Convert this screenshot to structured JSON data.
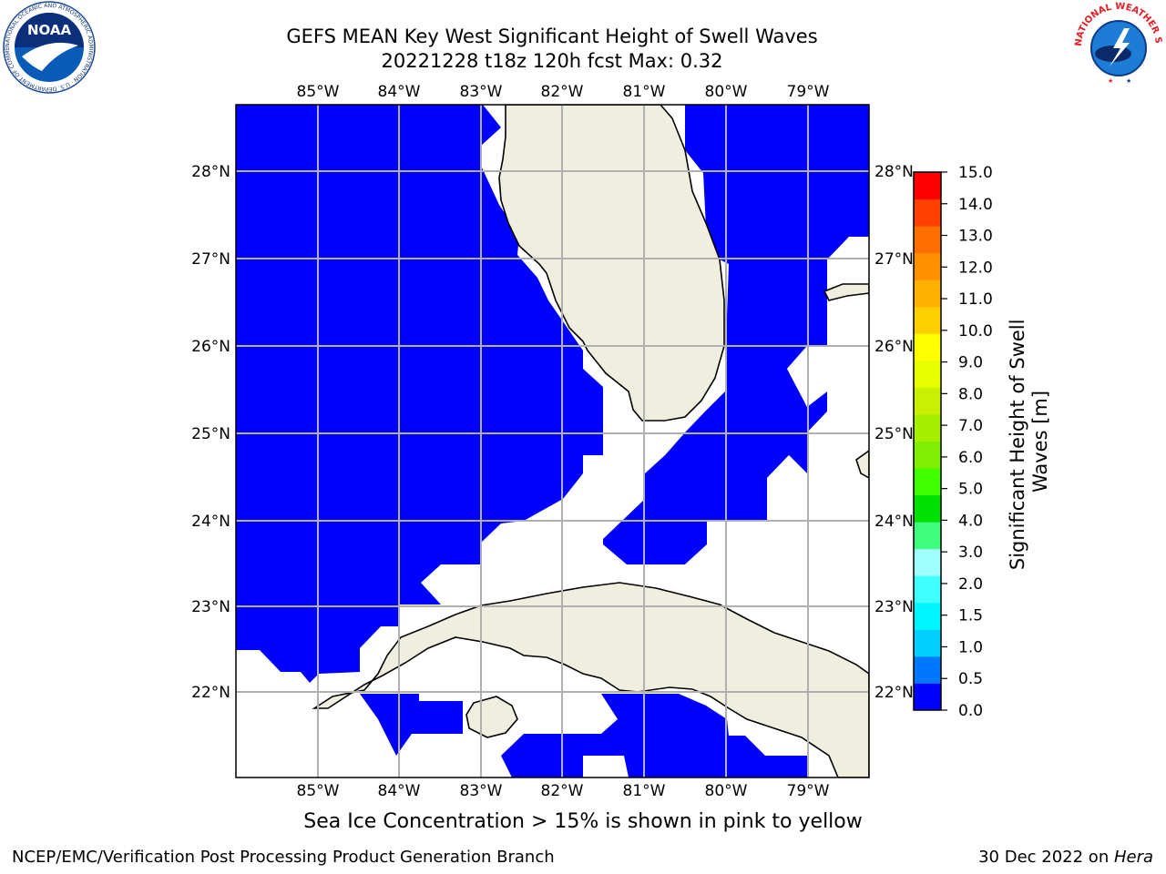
{
  "title": {
    "line1": "GEFS MEAN Key West Significant Height of Swell Waves",
    "line2": "20221228 t18z 120h fcst   Max: 0.32"
  },
  "map": {
    "lon_labels": [
      "85°W",
      "84°W",
      "83°W",
      "82°W",
      "81°W",
      "80°W",
      "79°W"
    ],
    "lat_labels": [
      "28°N",
      "27°N",
      "26°N",
      "25°N",
      "24°N",
      "23°N",
      "22°N"
    ],
    "colors": {
      "land": "#efeedf",
      "swell_fill": "#0000ff",
      "grid": "#b0b0b0",
      "coast": "#000000"
    }
  },
  "colorbar": {
    "title_line1": "Significant Height of Swell",
    "title_line2": "Waves [m]",
    "tick_labels": [
      "15.0",
      "14.0",
      "13.0",
      "12.0",
      "11.0",
      "10.0",
      "9.0",
      "8.0",
      "7.0",
      "6.0",
      "5.0",
      "4.0",
      "3.0",
      "2.0",
      "1.5",
      "1.0",
      "0.5",
      "0.0"
    ],
    "colors_bottom_to_top": [
      "#0000ff",
      "#0077ff",
      "#00cfff",
      "#00f5ff",
      "#40ffff",
      "#a0ffff",
      "#40ff80",
      "#00e000",
      "#40ff00",
      "#80ee00",
      "#a8ee00",
      "#c8f000",
      "#e8ff00",
      "#ffff00",
      "#ffd000",
      "#ffb000",
      "#ff9000",
      "#ff6f00",
      "#ff4000",
      "#ff0000"
    ]
  },
  "logos": {
    "noaa": {
      "text": "NOAA",
      "ring": "NATIONAL OCEANIC AND ATMOSPHERIC ADMINISTRATION · U.S. DEPARTMENT OF COMMERCE"
    },
    "nws": {
      "ring": "NATIONAL WEATHER SERVICE"
    }
  },
  "note": "Sea Ice Concentration > 15% is shown in pink to yellow",
  "footer": {
    "left": "NCEP/EMC/Verification Post Processing Product Generation Branch",
    "right_prefix": "30 Dec 2022 on ",
    "right_host": "Hera"
  }
}
